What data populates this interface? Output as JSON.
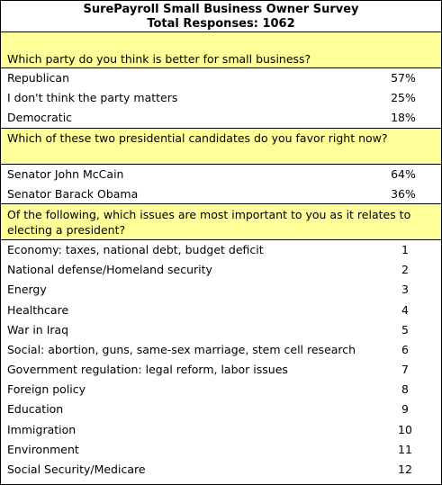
{
  "survey": {
    "title": "SurePayroll Small Business Owner Survey",
    "total_responses": "Total Responses: 1062",
    "sections": [
      {
        "question": "Which party do you think is better for small business?",
        "rows": [
          {
            "label": "Republican",
            "value": "57%"
          },
          {
            "label": "I don't think the party matters",
            "value": "25%"
          },
          {
            "label": "Democratic",
            "value": "18%"
          }
        ]
      },
      {
        "question": "Which of these two presidential candidates do you favor right now?",
        "rows": [
          {
            "label": "Senator John McCain",
            "value": "64%"
          },
          {
            "label": "Senator Barack Obama",
            "value": "36%"
          }
        ]
      },
      {
        "question": "Of the following, which issues are most important to you as it relates to electing a president?",
        "rows": [
          {
            "label": "Economy: taxes, national debt, budget deficit",
            "value": "1"
          },
          {
            "label": "National defense/Homeland security",
            "value": "2"
          },
          {
            "label": "Energy",
            "value": "3"
          },
          {
            "label": "Healthcare",
            "value": "4"
          },
          {
            "label": "War in Iraq",
            "value": "5"
          },
          {
            "label": "Social: abortion, guns, same-sex marriage, stem cell research",
            "value": "6"
          },
          {
            "label": "Government regulation: legal reform, labor issues",
            "value": "7"
          },
          {
            "label": "Foreign policy",
            "value": "8"
          },
          {
            "label": "Education",
            "value": "9"
          },
          {
            "label": "Immigration",
            "value": "10"
          },
          {
            "label": "Environment",
            "value": "11"
          },
          {
            "label": "Social Security/Medicare",
            "value": "12"
          }
        ]
      }
    ]
  }
}
